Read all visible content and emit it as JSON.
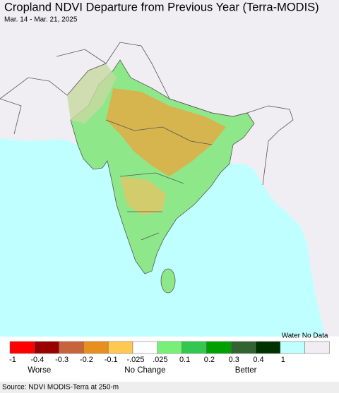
{
  "header": {
    "title": "Cropland NDVI Departure from Previous Year (Terra-MODIS)",
    "subtitle": "Mar. 14 - Mar. 21, 2025"
  },
  "legend": {
    "colors": [
      "#ff0000",
      "#990000",
      "#c8643c",
      "#e8901e",
      "#ffc850",
      "#ffffff",
      "#78f078",
      "#32c850",
      "#00a000",
      "#326432",
      "#003200",
      "#c0ffff",
      "#f0eef2"
    ],
    "labels": [
      "-1",
      "-0.4",
      "-0.3",
      "-0.2",
      "-0.1",
      "-.025",
      ".025",
      "0.1",
      "0.2",
      "0.3",
      "0.4",
      "1"
    ],
    "water_label": "Water No Data",
    "worse": "Worse",
    "no_change": "No Change",
    "better": "Better"
  },
  "footer": {
    "source": "Source: NDVI MODIS-Terra at 250-m"
  }
}
